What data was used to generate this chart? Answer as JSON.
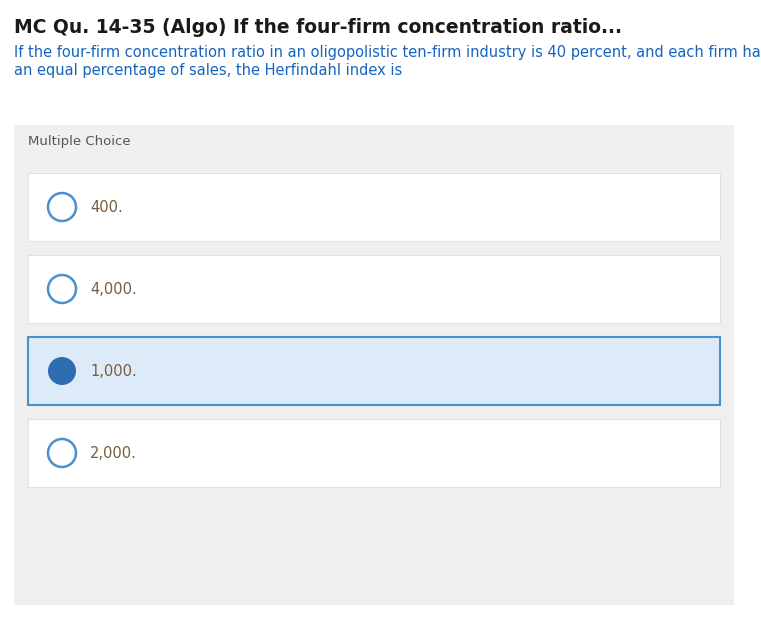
{
  "title": "MC Qu. 14-35 (Algo) If the four-firm concentration ratio...",
  "question_line1": "If the four-firm concentration ratio in an oligopolistic ten-firm industry is 40 percent, and each firm has",
  "question_line2": "an equal percentage of sales, the Herfindahl index is",
  "section_label": "Multiple Choice",
  "choices": [
    "400.",
    "4,000.",
    "1,000.",
    "2,000."
  ],
  "correct_index": 2,
  "page_bg": "#ffffff",
  "panel_bg": "#efefef",
  "choice_bg": "#ffffff",
  "choice_border": "#e0e0e0",
  "selected_bg": "#ddeaf8",
  "selected_border": "#4a90d0",
  "title_color": "#1a1a1a",
  "question_color": "#1565c0",
  "section_label_color": "#555555",
  "choice_text_color": "#7a5c3a",
  "radio_empty_stroke": "#4a90d0",
  "radio_filled_color": "#2e6db0",
  "title_fontsize": 13.5,
  "question_fontsize": 10.5,
  "section_fontsize": 9.5,
  "choice_fontsize": 10.5
}
